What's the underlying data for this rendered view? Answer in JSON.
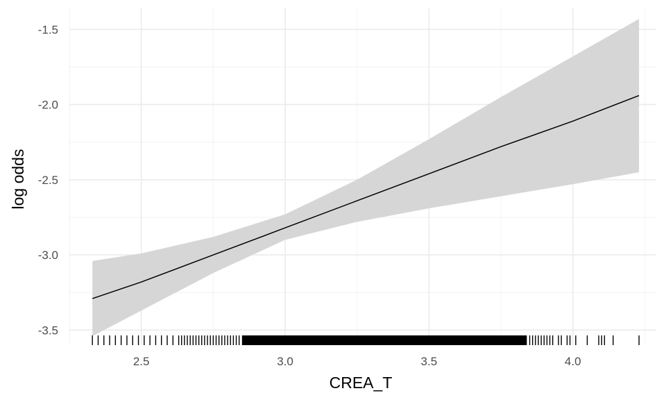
{
  "chart_data": {
    "type": "line",
    "title": "",
    "xlabel": "CREA_T",
    "ylabel": "log odds",
    "xlim": [
      2.25,
      4.29
    ],
    "ylim": [
      -3.6,
      -1.36
    ],
    "x_ticks": [
      2.5,
      3.0,
      3.5,
      4.0
    ],
    "x_tick_labels": [
      "2.5",
      "3.0",
      "3.5",
      "4.0"
    ],
    "y_ticks": [
      -3.5,
      -3.0,
      -2.5,
      -2.0,
      -1.5
    ],
    "y_tick_labels": [
      "-3.5",
      "-3.0",
      "-2.5",
      "-2.0",
      "-1.5"
    ],
    "grid": true,
    "legend": "none",
    "series": [
      {
        "x": [
          2.33,
          2.5,
          2.75,
          3.0,
          3.25,
          3.5,
          3.75,
          4.0,
          4.23
        ],
        "y": [
          -3.29,
          -3.18,
          -3.0,
          -2.82,
          -2.64,
          -2.46,
          -2.28,
          -2.11,
          -1.94
        ],
        "ci_lower": [
          -3.54,
          -3.37,
          -3.12,
          -2.9,
          -2.78,
          -2.69,
          -2.61,
          -2.53,
          -2.45
        ],
        "ci_upper": [
          -3.04,
          -2.99,
          -2.88,
          -2.73,
          -2.5,
          -2.23,
          -1.95,
          -1.68,
          -1.43
        ]
      }
    ],
    "rug": {
      "x_min": 2.33,
      "x_max": 4.23,
      "dense_from": 2.85,
      "dense_to": 3.84,
      "sparse_left": [
        2.33,
        2.35,
        2.37,
        2.39,
        2.41,
        2.43,
        2.45,
        2.47,
        2.49,
        2.51,
        2.53,
        2.55,
        2.57,
        2.59,
        2.61,
        2.63,
        2.64,
        2.65,
        2.66,
        2.67,
        2.68,
        2.69,
        2.7,
        2.71,
        2.72,
        2.73,
        2.74,
        2.75,
        2.76,
        2.77,
        2.78,
        2.79,
        2.8,
        2.81,
        2.82,
        2.83,
        2.84
      ],
      "sparse_right": [
        3.85,
        3.86,
        3.87,
        3.88,
        3.89,
        3.9,
        3.91,
        3.92,
        3.93,
        3.95,
        3.96,
        3.98,
        3.99,
        4.01,
        4.05,
        4.09,
        4.1,
        4.11,
        4.14,
        4.23
      ]
    },
    "colors": {
      "ribbon": "#d6d6d6",
      "line": "#000000",
      "grid_major": "#ebebeb",
      "grid_minor": "#f3f3f3",
      "rug": "#000000",
      "tick_text": "#4d4d4d",
      "title_text": "#000000"
    }
  }
}
